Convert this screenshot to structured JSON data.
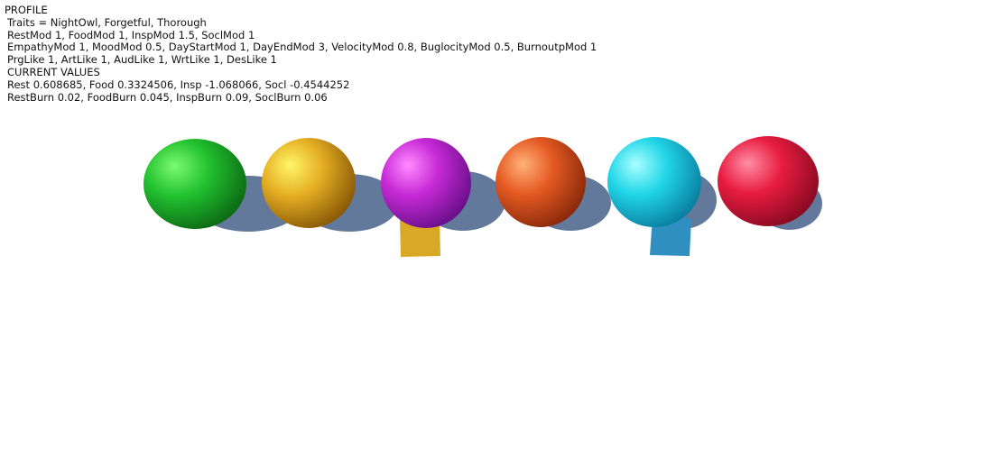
{
  "hud": {
    "profile_header": "PROFILE",
    "traits": "Traits = NightOwl, Forgetful, Thorough",
    "mods_basic": "RestMod 1, FoodMod 1, InspMod 1.5, SoclMod 1",
    "mods_extended": "EmpathyMod 1, MoodMod 0.5, DayStartMod 1, DayEndMod 3, VelocityMod 0.8, BuglocityMod 0.5, BurnoutpMod 1",
    "likes": "PrgLike 1, ArtLike 1, AudLike 1, WrtLike 1, DesLike 1",
    "current_header": "CURRENT VALUES",
    "current_values": "Rest 0.608685, Food 0.3324506, Insp -1.068066, Socl -0.4544252",
    "burn_rates": "RestBurn 0.02, FoodBurn 0.045, InspBurn 0.09, SoclBurn 0.06"
  },
  "scene": {
    "shadow_color": "#5b7296",
    "spheres": [
      {
        "color": "#22c230",
        "highlight": "#7dfa6e",
        "dark": "#0d6a15"
      },
      {
        "color": "#e6b024",
        "highlight": "#fff66a",
        "dark": "#8a5a08"
      },
      {
        "color": "#c72ad6",
        "highlight": "#ff8cff",
        "dark": "#6a0f8a"
      },
      {
        "color": "#e55a22",
        "highlight": "#ffb27a",
        "dark": "#8a2a0c"
      },
      {
        "color": "#22d6e8",
        "highlight": "#aaffff",
        "dark": "#0a7fa0"
      },
      {
        "color": "#e81c40",
        "highlight": "#ff8ea6",
        "dark": "#8a0a22"
      }
    ],
    "cubes": [
      {
        "color": "#d9a825"
      },
      {
        "color": "#2e8fc0"
      }
    ]
  }
}
